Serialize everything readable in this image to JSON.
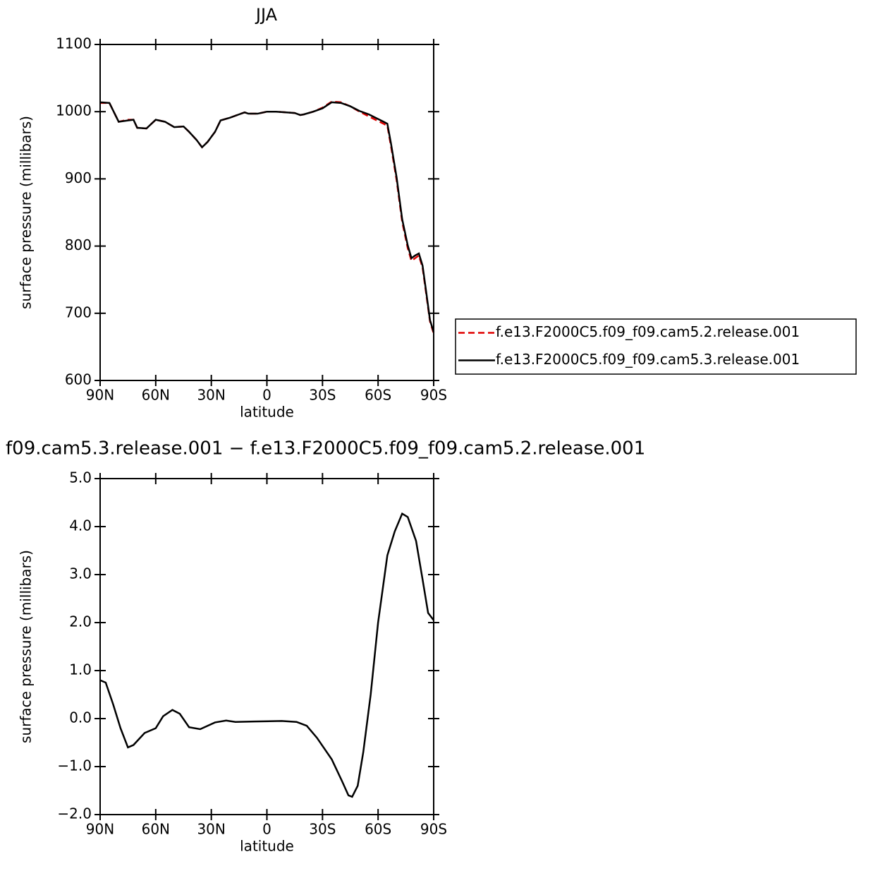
{
  "chart_data": [
    {
      "type": "line",
      "title": "JJA",
      "xlabel": "latitude",
      "ylabel": "surface pressure (millibars)",
      "xlim": [
        90,
        -90
      ],
      "ylim": [
        600,
        1100
      ],
      "xticks": [
        {
          "value": 90,
          "label": "90N"
        },
        {
          "value": 60,
          "label": "60N"
        },
        {
          "value": 30,
          "label": "30N"
        },
        0,
        {
          "value": -30,
          "label": "30S"
        },
        {
          "value": -60,
          "label": "60S"
        },
        {
          "value": -90,
          "label": "90S"
        }
      ],
      "yticks": [
        600,
        700,
        800,
        900,
        1000,
        1100
      ],
      "legend": "right",
      "x": [
        90,
        85,
        80,
        75,
        72,
        70,
        65,
        60,
        55,
        50,
        45,
        42,
        38,
        35,
        32,
        28,
        25,
        20,
        15,
        12,
        10,
        5,
        0,
        -5,
        -10,
        -15,
        -18,
        -20,
        -25,
        -30,
        -35,
        -40,
        -45,
        -50,
        -55,
        -60,
        -63,
        -65,
        -67,
        -70,
        -73,
        -76,
        -78,
        -80,
        -82,
        -84,
        -86,
        -88,
        -90
      ],
      "series": [
        {
          "name": "f.e13.F2000C5.f09_f09.cam5.2.release.001",
          "color": "#e00000",
          "linestyle": "dashed",
          "values": [
            1013,
            1013,
            985,
            988,
            988,
            976,
            975,
            988,
            985,
            977,
            978,
            970,
            958,
            947,
            955,
            970,
            987,
            991,
            996,
            999,
            997,
            997,
            1000,
            1000,
            999,
            998,
            995,
            996,
            1000,
            1006,
            1015,
            1014,
            1008,
            1000,
            993,
            986,
            982,
            979,
            948,
            898,
            836,
            797,
            778,
            782,
            786,
            768,
            728,
            688,
            670
          ]
        },
        {
          "name": "f.e13.F2000C5.f09_f09.cam5.3.release.001",
          "color": "#000000",
          "linestyle": "solid",
          "values": [
            1014,
            1013,
            985,
            987,
            988,
            976,
            975,
            988,
            985,
            977,
            978,
            970,
            958,
            947,
            955,
            970,
            987,
            991,
            996,
            999,
            997,
            997,
            1000,
            1000,
            999,
            998,
            995,
            996,
            1000,
            1005,
            1014,
            1013,
            1008,
            1001,
            996,
            989,
            985,
            982,
            952,
            902,
            840,
            801,
            782,
            786,
            789,
            771,
            731,
            690,
            672
          ]
        }
      ]
    },
    {
      "type": "line",
      "title": "f09.cam5.3.release.001 − f.e13.F2000C5.f09_f09.cam5.2.release.001",
      "xlabel": "latitude",
      "ylabel": "surface pressure (millibars)",
      "xlim": [
        90,
        -90
      ],
      "ylim": [
        -2,
        5
      ],
      "xticks": [
        {
          "value": 90,
          "label": "90N"
        },
        {
          "value": 60,
          "label": "60N"
        },
        {
          "value": 30,
          "label": "30N"
        },
        0,
        {
          "value": -30,
          "label": "30S"
        },
        {
          "value": -60,
          "label": "60S"
        },
        {
          "value": -90,
          "label": "90S"
        }
      ],
      "yticks": [
        {
          "value": -2,
          "label": "−2.0"
        },
        {
          "value": -1,
          "label": "−1.0"
        },
        {
          "value": 0,
          "label": "0.0"
        },
        {
          "value": 1,
          "label": "1.0"
        },
        {
          "value": 2,
          "label": "2.0"
        },
        {
          "value": 3,
          "label": "3.0"
        },
        {
          "value": 4,
          "label": "4.0"
        },
        {
          "value": 5,
          "label": "5.0"
        }
      ],
      "x": [
        90,
        87,
        83,
        79,
        75,
        72,
        66,
        60,
        56,
        51,
        47,
        42,
        36,
        28,
        22,
        17,
        7,
        -8,
        -16,
        -21.5,
        -27,
        -35,
        -40.5,
        -44,
        -46,
        -49,
        -52,
        -56,
        -60,
        -65,
        -69,
        -73,
        -76,
        -80.5,
        -84,
        -87,
        -90
      ],
      "series": [
        {
          "color": "#000000",
          "linestyle": "solid",
          "values": [
            0.8,
            0.75,
            0.3,
            -0.2,
            -0.6,
            -0.55,
            -0.3,
            -0.2,
            0.05,
            0.18,
            0.1,
            -0.18,
            -0.22,
            -0.08,
            -0.04,
            -0.07,
            -0.06,
            -0.05,
            -0.07,
            -0.15,
            -0.4,
            -0.85,
            -1.3,
            -1.6,
            -1.63,
            -1.4,
            -0.7,
            0.5,
            2.0,
            3.4,
            3.9,
            4.27,
            4.2,
            3.7,
            2.9,
            2.2,
            2.05
          ]
        }
      ]
    }
  ]
}
